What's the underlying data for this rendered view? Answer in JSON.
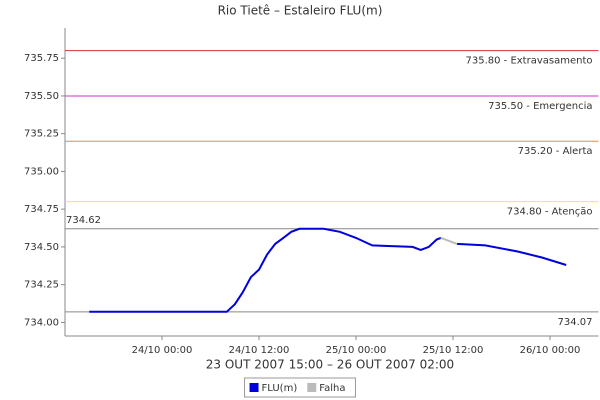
{
  "chart_data": {
    "type": "line",
    "title": "Rio Tietê – Estaleiro FLU(m)",
    "x_label": "23 OUT 2007 15:00 – 26 OUT 2007 02:00",
    "x": [
      "23/10 15:00",
      "24/10 08:00",
      "24/10 09:00",
      "24/10 10:00",
      "24/10 11:00",
      "24/10 12:00",
      "24/10 13:00",
      "24/10 14:00",
      "24/10 15:00",
      "24/10 16:00",
      "24/10 17:00",
      "24/10 20:00",
      "24/10 22:00",
      "25/10 00:00",
      "25/10 02:00",
      "25/10 07:00",
      "25/10 08:00",
      "25/10 09:00",
      "25/10 10:00",
      "25/10 10:30",
      "25/10 11:30",
      "25/10 12:30",
      "25/10 16:00",
      "25/10 20:00",
      "25/10 23:00",
      "26/10 02:00"
    ],
    "series": [
      {
        "name": "FLU(m)",
        "color": "#0000dd",
        "values": [
          734.07,
          734.07,
          734.12,
          734.2,
          734.3,
          734.35,
          734.45,
          734.52,
          734.56,
          734.6,
          734.62,
          734.62,
          734.6,
          734.56,
          734.51,
          734.5,
          734.48,
          734.5,
          734.55,
          734.56,
          null,
          734.52,
          734.51,
          734.47,
          734.43,
          734.38
        ]
      },
      {
        "name": "Falha",
        "color": "#bbbbbb",
        "values": [
          null,
          null,
          null,
          null,
          null,
          null,
          null,
          null,
          null,
          null,
          null,
          null,
          null,
          null,
          null,
          null,
          null,
          null,
          null,
          734.56,
          734.54,
          734.52,
          null,
          null,
          null,
          null
        ]
      }
    ],
    "xlim": [
      "23/10 12:00",
      "26/10 06:00"
    ],
    "xticks": [
      "24/10 00:00",
      "24/10 12:00",
      "25/10 00:00",
      "25/10 12:00",
      "26/10 00:00"
    ],
    "ylim": [
      733.91,
      735.95
    ],
    "yticks": [
      {
        "value": 734,
        "label": "734.00"
      },
      {
        "value": 734.25,
        "label": "734.25"
      },
      {
        "value": 734.5,
        "label": "734.50"
      },
      {
        "value": 734.75,
        "label": "734.75"
      },
      {
        "value": 735,
        "label": "735.00"
      },
      {
        "value": 735.25,
        "label": "735.25"
      },
      {
        "value": 735.5,
        "label": "735.50"
      },
      {
        "value": 735.75,
        "label": "735.75"
      }
    ],
    "reference_lines": [
      {
        "value": 735.8,
        "label": "735.80 - Extravasamento",
        "color": "#dd3333",
        "label_side": "right"
      },
      {
        "value": 735.5,
        "label": "735.50 - Emergencia",
        "color": "#cc33cc",
        "label_side": "right"
      },
      {
        "value": 735.2,
        "label": "735.20 - Alerta",
        "color": "#ee8833",
        "label_side": "right"
      },
      {
        "value": 734.8,
        "label": "734.80 - Atenção",
        "color": "#eeee44",
        "label_side": "right"
      },
      {
        "value": 734.62,
        "label": "734.62",
        "color": "#888888",
        "label_side": "left"
      },
      {
        "value": 734.07,
        "label": "734.07",
        "color": "#888888",
        "label_side": "right"
      }
    ],
    "legend": "bottom"
  }
}
